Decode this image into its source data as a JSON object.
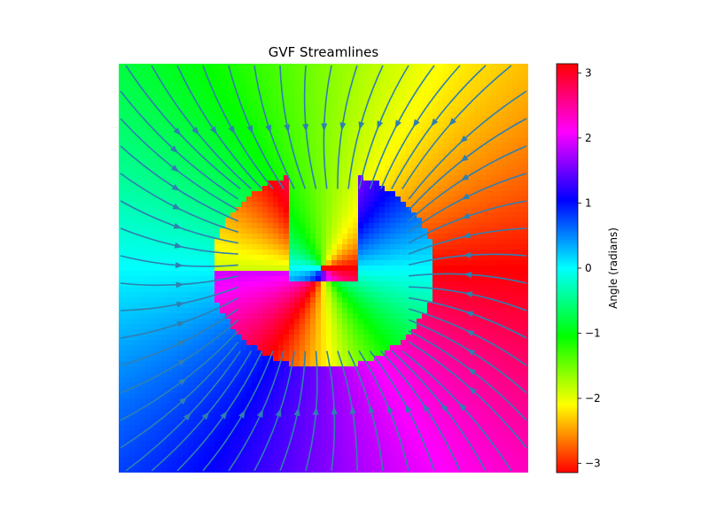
{
  "chart_data": {
    "type": "heatmap",
    "title": "GVF Streamlines",
    "xlabel": "",
    "ylabel": "",
    "field": {
      "quantity": "gradient vector flow direction angle",
      "cmap": "hsv",
      "vmin": -3.1416,
      "vmax": 3.1416,
      "shape": "U-shaped object in center",
      "streamline_color": "#2f7fb0",
      "streamline_count_approx": 60
    },
    "colorbar": {
      "label": "Angle (radians)",
      "ticks": [
        3,
        2,
        1,
        0,
        -1,
        -2,
        -3
      ],
      "tick_labels": [
        "3",
        "2",
        "1",
        "0",
        "−1",
        "−2",
        "−3"
      ]
    },
    "axes_visible": false
  }
}
